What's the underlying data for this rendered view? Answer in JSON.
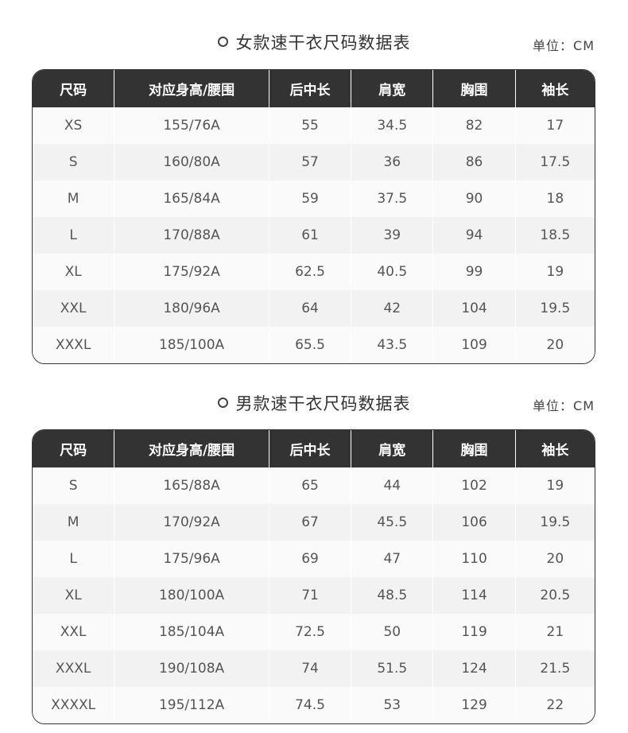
{
  "headers": [
    "尺码",
    "对应身高/腰围",
    "后中长",
    "肩宽",
    "胸围",
    "袖长"
  ],
  "unit": "单位：CM",
  "women": {
    "title": "女款速干衣尺码数据表",
    "rows": [
      [
        "XS",
        "155/76A",
        "55",
        "34.5",
        "82",
        "17"
      ],
      [
        "S",
        "160/80A",
        "57",
        "36",
        "86",
        "17.5"
      ],
      [
        "M",
        "165/84A",
        "59",
        "37.5",
        "90",
        "18"
      ],
      [
        "L",
        "170/88A",
        "61",
        "39",
        "94",
        "18.5"
      ],
      [
        "XL",
        "175/92A",
        "62.5",
        "40.5",
        "99",
        "19"
      ],
      [
        "XXL",
        "180/96A",
        "64",
        "42",
        "104",
        "19.5"
      ],
      [
        "XXXL",
        "185/100A",
        "65.5",
        "43.5",
        "109",
        "20"
      ]
    ]
  },
  "men": {
    "title": "男款速干衣尺码数据表",
    "rows": [
      [
        "S",
        "165/88A",
        "65",
        "44",
        "102",
        "19"
      ],
      [
        "M",
        "170/92A",
        "67",
        "45.5",
        "106",
        "19.5"
      ],
      [
        "L",
        "175/96A",
        "69",
        "47",
        "110",
        "20"
      ],
      [
        "XL",
        "180/100A",
        "71",
        "48.5",
        "114",
        "20.5"
      ],
      [
        "XXL",
        "185/104A",
        "72.5",
        "50",
        "119",
        "21"
      ],
      [
        "XXXL",
        "190/108A",
        "74",
        "51.5",
        "124",
        "21.5"
      ],
      [
        "XXXXL",
        "195/112A",
        "74.5",
        "53",
        "129",
        "22"
      ]
    ]
  }
}
